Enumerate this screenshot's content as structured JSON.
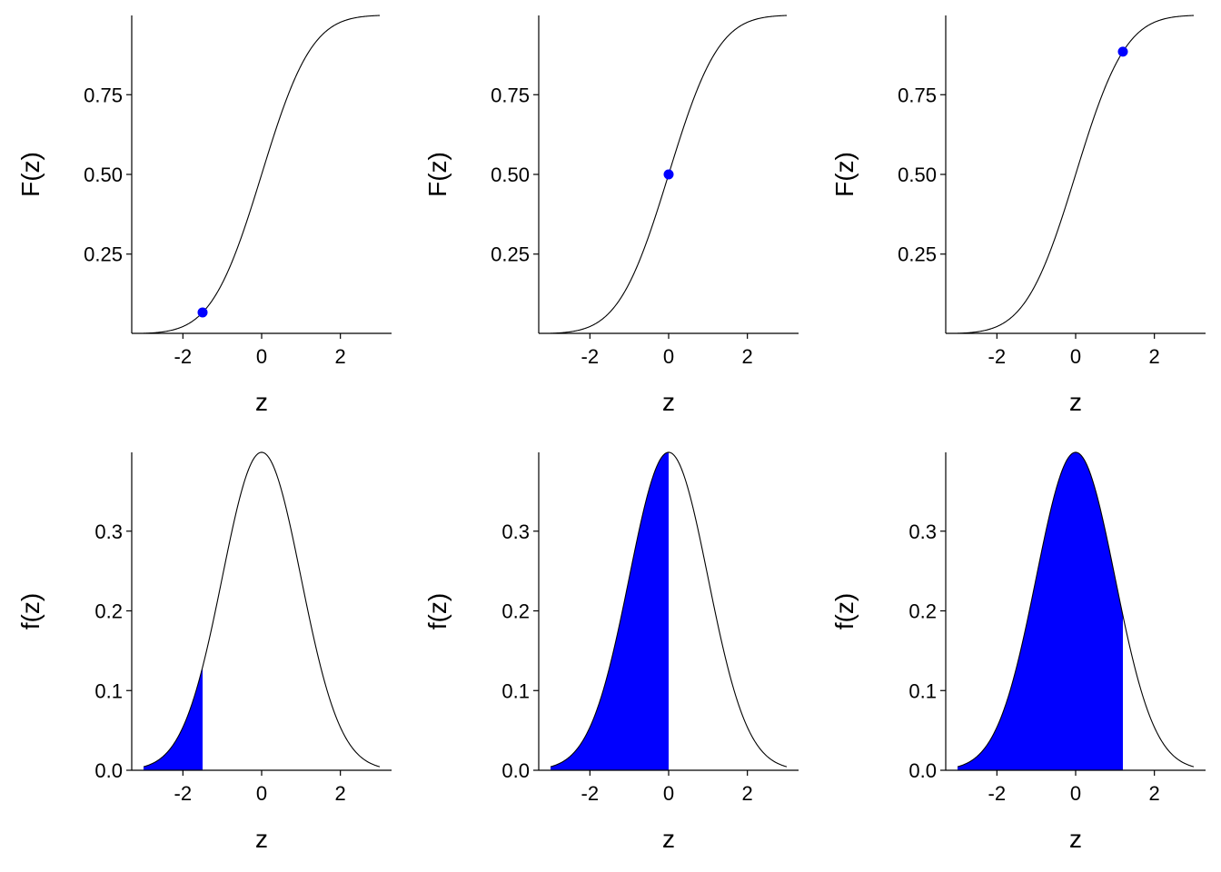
{
  "chart_data": [
    {
      "type": "line",
      "xlabel": "z",
      "ylabel": "F(z)",
      "curve": "normal_cdf",
      "x_range": [
        -3,
        3
      ],
      "xlim": [
        -3.3,
        3.3
      ],
      "ylim": [
        0.0013,
        0.9987
      ],
      "xticks": [
        -2,
        0,
        2
      ],
      "xtick_labels": [
        "-2",
        "0",
        "2"
      ],
      "yticks": [
        0.25,
        0.5,
        0.75
      ],
      "ytick_labels": [
        "0.25",
        "0.50",
        "0.75"
      ],
      "highlight_point": {
        "x": -1.5,
        "y": 0.067
      },
      "highlight_color": "#0000ff",
      "line_color": "#000000"
    },
    {
      "type": "line",
      "xlabel": "z",
      "ylabel": "F(z)",
      "curve": "normal_cdf",
      "x_range": [
        -3,
        3
      ],
      "xlim": [
        -3.3,
        3.3
      ],
      "ylim": [
        0.0013,
        0.9987
      ],
      "xticks": [
        -2,
        0,
        2
      ],
      "xtick_labels": [
        "-2",
        "0",
        "2"
      ],
      "yticks": [
        0.25,
        0.5,
        0.75
      ],
      "ytick_labels": [
        "0.25",
        "0.50",
        "0.75"
      ],
      "highlight_point": {
        "x": 0,
        "y": 0.5
      },
      "highlight_color": "#0000ff",
      "line_color": "#000000"
    },
    {
      "type": "line",
      "xlabel": "z",
      "ylabel": "F(z)",
      "curve": "normal_cdf",
      "x_range": [
        -3,
        3
      ],
      "xlim": [
        -3.3,
        3.3
      ],
      "ylim": [
        0.0013,
        0.9987
      ],
      "xticks": [
        -2,
        0,
        2
      ],
      "xtick_labels": [
        "-2",
        "0",
        "2"
      ],
      "yticks": [
        0.25,
        0.5,
        0.75
      ],
      "ytick_labels": [
        "0.25",
        "0.50",
        "0.75"
      ],
      "highlight_point": {
        "x": 1.2,
        "y": 0.885
      },
      "highlight_color": "#0000ff",
      "line_color": "#000000"
    },
    {
      "type": "area",
      "xlabel": "z",
      "ylabel": "f(z)",
      "curve": "normal_pdf",
      "x_range": [
        -3,
        3
      ],
      "xlim": [
        -3.3,
        3.3
      ],
      "ylim": [
        0,
        0.3989
      ],
      "xticks": [
        -2,
        0,
        2
      ],
      "xtick_labels": [
        "-2",
        "0",
        "2"
      ],
      "yticks": [
        0,
        0.1,
        0.2,
        0.3
      ],
      "ytick_labels": [
        "0.0",
        "0.1",
        "0.2",
        "0.3"
      ],
      "shaded_region": {
        "from": -3,
        "to": -1.5
      },
      "fill_color": "#0000ff",
      "line_color": "#000000"
    },
    {
      "type": "area",
      "xlabel": "z",
      "ylabel": "f(z)",
      "curve": "normal_pdf",
      "x_range": [
        -3,
        3
      ],
      "xlim": [
        -3.3,
        3.3
      ],
      "ylim": [
        0,
        0.3989
      ],
      "xticks": [
        -2,
        0,
        2
      ],
      "xtick_labels": [
        "-2",
        "0",
        "2"
      ],
      "yticks": [
        0,
        0.1,
        0.2,
        0.3
      ],
      "ytick_labels": [
        "0.0",
        "0.1",
        "0.2",
        "0.3"
      ],
      "shaded_region": {
        "from": -3,
        "to": 0
      },
      "fill_color": "#0000ff",
      "line_color": "#000000"
    },
    {
      "type": "area",
      "xlabel": "z",
      "ylabel": "f(z)",
      "curve": "normal_pdf",
      "x_range": [
        -3,
        3
      ],
      "xlim": [
        -3.3,
        3.3
      ],
      "ylim": [
        0,
        0.3989
      ],
      "xticks": [
        -2,
        0,
        2
      ],
      "xtick_labels": [
        "-2",
        "0",
        "2"
      ],
      "yticks": [
        0,
        0.1,
        0.2,
        0.3
      ],
      "ytick_labels": [
        "0.0",
        "0.1",
        "0.2",
        "0.3"
      ],
      "shaded_region": {
        "from": -3,
        "to": 1.2
      },
      "fill_color": "#0000ff",
      "line_color": "#000000"
    }
  ]
}
